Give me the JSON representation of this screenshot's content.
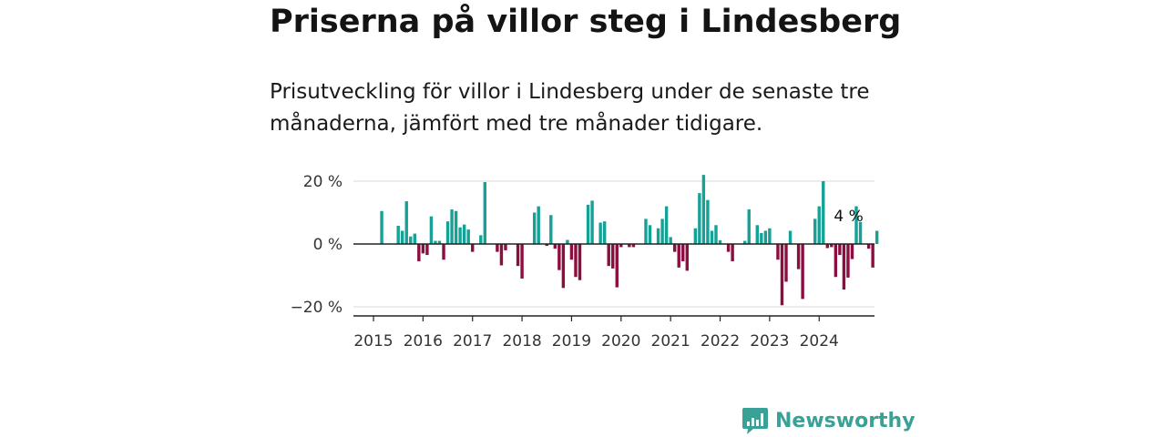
{
  "header": {
    "title": "Priserna på villor steg i Lindesberg",
    "subtitle": "Prisutveckling för villor i Lindesberg under de senaste tre månaderna, jämfört med tre månader tidigare."
  },
  "brand": {
    "name": "Newsworthy",
    "icon": "newsworthy-logo-icon",
    "color": "#3aa196"
  },
  "colors": {
    "positive": "#16a196",
    "negative": "#8c0d3f",
    "grid": "#d9d9d9",
    "axis": "#222222"
  },
  "chart_data": {
    "type": "bar",
    "title": "Priserna på villor steg i Lindesberg",
    "subtitle": "Prisutveckling för villor i Lindesberg under de senaste tre månaderna, jämfört med tre månader tidigare.",
    "xlabel": "",
    "ylabel": "",
    "x_start": "2015-01",
    "x_range": [
      "2014-10",
      "2025-04"
    ],
    "ylim": [
      -23,
      23
    ],
    "yticks": [
      {
        "value": 20,
        "label": "20 %"
      },
      {
        "value": 0,
        "label": "0 %"
      },
      {
        "value": -20,
        "label": "−20 %"
      }
    ],
    "xticks": [
      {
        "date": "2015-01",
        "label": "2015"
      },
      {
        "date": "2016-01",
        "label": "2016"
      },
      {
        "date": "2017-01",
        "label": "2017"
      },
      {
        "date": "2018-01",
        "label": "2018"
      },
      {
        "date": "2019-01",
        "label": "2019"
      },
      {
        "date": "2020-01",
        "label": "2020"
      },
      {
        "date": "2021-01",
        "label": "2021"
      },
      {
        "date": "2022-01",
        "label": "2022"
      },
      {
        "date": "2023-01",
        "label": "2023"
      },
      {
        "date": "2024-01",
        "label": "2024"
      }
    ],
    "grid": true,
    "legend": "none",
    "series": [
      {
        "values": [
          null,
          null,
          10.5,
          null,
          null,
          null,
          5.8,
          4.2,
          13.6,
          2.4,
          3.3,
          -5.5,
          -3.0,
          -3.5,
          8.8,
          1.0,
          1.0,
          -5.0,
          7.2,
          11.0,
          10.5,
          5.3,
          6.2,
          4.6,
          -2.5,
          null,
          2.8,
          19.7,
          null,
          null,
          -2.5,
          -6.8,
          -2.0,
          null,
          null,
          -7.0,
          -11.0,
          null,
          null,
          10.0,
          12.0,
          null,
          -0.6,
          9.2,
          -1.5,
          -8.3,
          -14.0,
          1.3,
          -5.0,
          -10.5,
          -11.5,
          null,
          12.5,
          13.8,
          null,
          6.8,
          7.2,
          -7.0,
          -7.8,
          -13.8,
          -1.0,
          null,
          -1.0,
          -1.0,
          null,
          null,
          8.0,
          6.0,
          null,
          5.0,
          8.0,
          12.0,
          2.2,
          -2.5,
          -7.5,
          -5.5,
          -8.5,
          null,
          5.0,
          16.2,
          22.0,
          14.0,
          4.2,
          6.0,
          1.2,
          null,
          -2.5,
          -5.5,
          null,
          null,
          1.0,
          11.0,
          null,
          6.0,
          3.5,
          4.2,
          5.0,
          null,
          -5.0,
          -19.5,
          -12.0,
          4.2,
          null,
          -8.0,
          -17.5,
          null,
          null,
          8.0,
          12.0,
          20.0,
          -1.3,
          -1.0,
          -10.5,
          -3.5,
          -14.5,
          -10.7,
          -4.8,
          12.0,
          7.0,
          null,
          -1.5,
          -7.5,
          4.2
        ]
      }
    ],
    "annotations": [
      {
        "text": "4 %",
        "date": "2024-05"
      }
    ]
  }
}
